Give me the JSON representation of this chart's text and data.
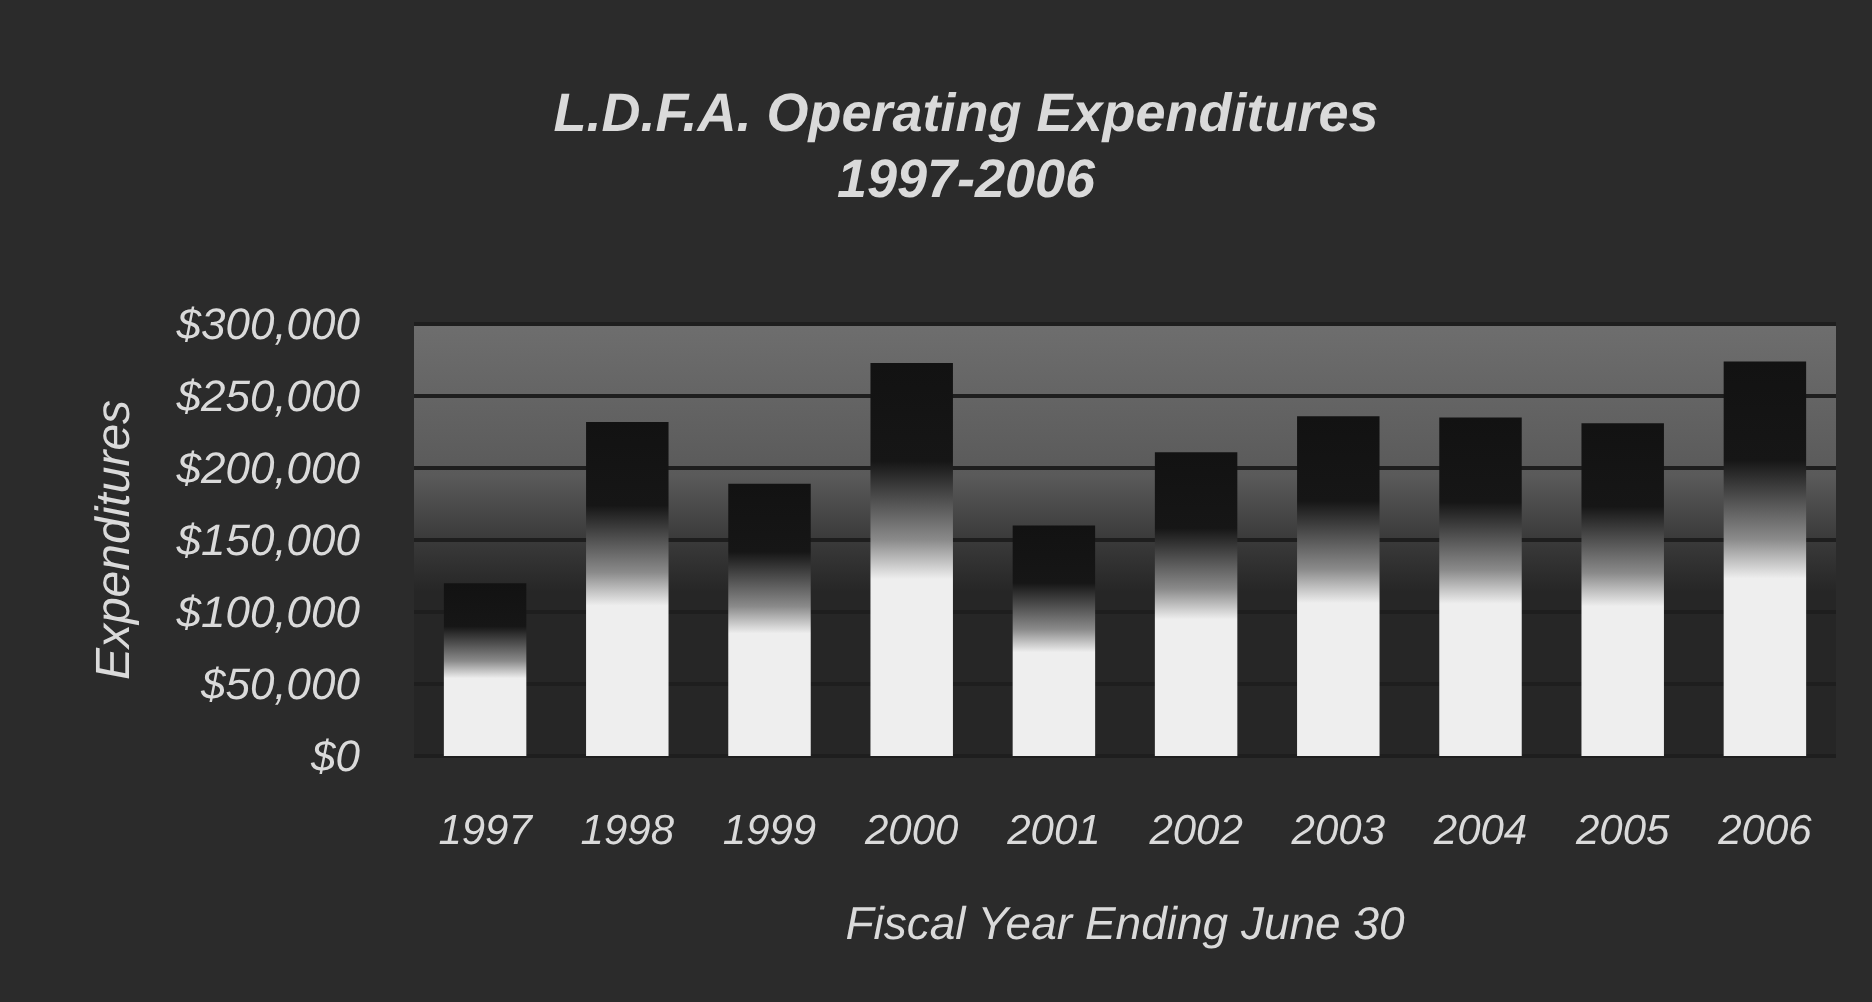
{
  "chart_data": {
    "type": "bar",
    "title": "L.D.F.A. Operating Expenditures",
    "subtitle": "1997-2006",
    "xlabel": "Fiscal Year Ending June 30",
    "ylabel": "Expenditures",
    "categories": [
      "1997",
      "1998",
      "1999",
      "2000",
      "2001",
      "2002",
      "2003",
      "2004",
      "2005",
      "2006"
    ],
    "values": [
      120000,
      232000,
      189000,
      273000,
      160000,
      211000,
      236000,
      235000,
      231000,
      274000
    ],
    "color": "#eeeeee",
    "ylim": [
      0,
      300000
    ],
    "yticks": [
      {
        "value": 0,
        "label": "$0"
      },
      {
        "value": 50000,
        "label": "$50,000"
      },
      {
        "value": 100000,
        "label": "$100,000"
      },
      {
        "value": 150000,
        "label": "$150,000"
      },
      {
        "value": 200000,
        "label": "$200,000"
      },
      {
        "value": 250000,
        "label": "$250,000"
      },
      {
        "value": 300000,
        "label": "$300,000"
      }
    ],
    "grid": "y"
  }
}
